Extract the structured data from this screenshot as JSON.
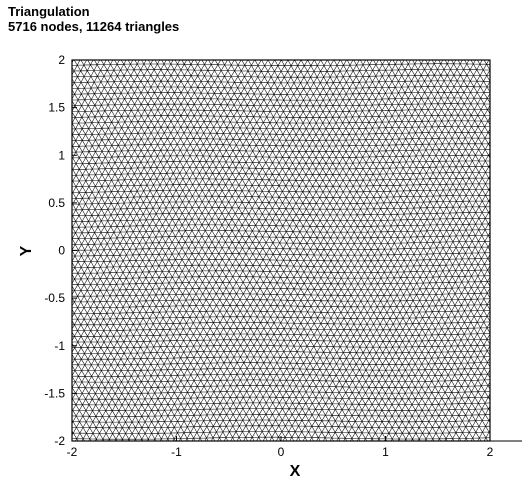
{
  "title": {
    "line1": "Triangulation",
    "line2": "5716 nodes, 11264 triangles"
  },
  "plot": {
    "x_axis_label": "X",
    "y_axis_label": "Y",
    "xlim": [
      -2,
      2
    ],
    "ylim": [
      -2,
      2
    ],
    "x_ticks": [
      "-2",
      "-1",
      "0",
      "1",
      "2"
    ],
    "y_ticks": [
      "2",
      "1.5",
      "1",
      "0.5",
      "0",
      "-0.5",
      "-1",
      "-1.5",
      "-2"
    ],
    "mesh_color": "#000000",
    "background_color": "#ffffff"
  }
}
